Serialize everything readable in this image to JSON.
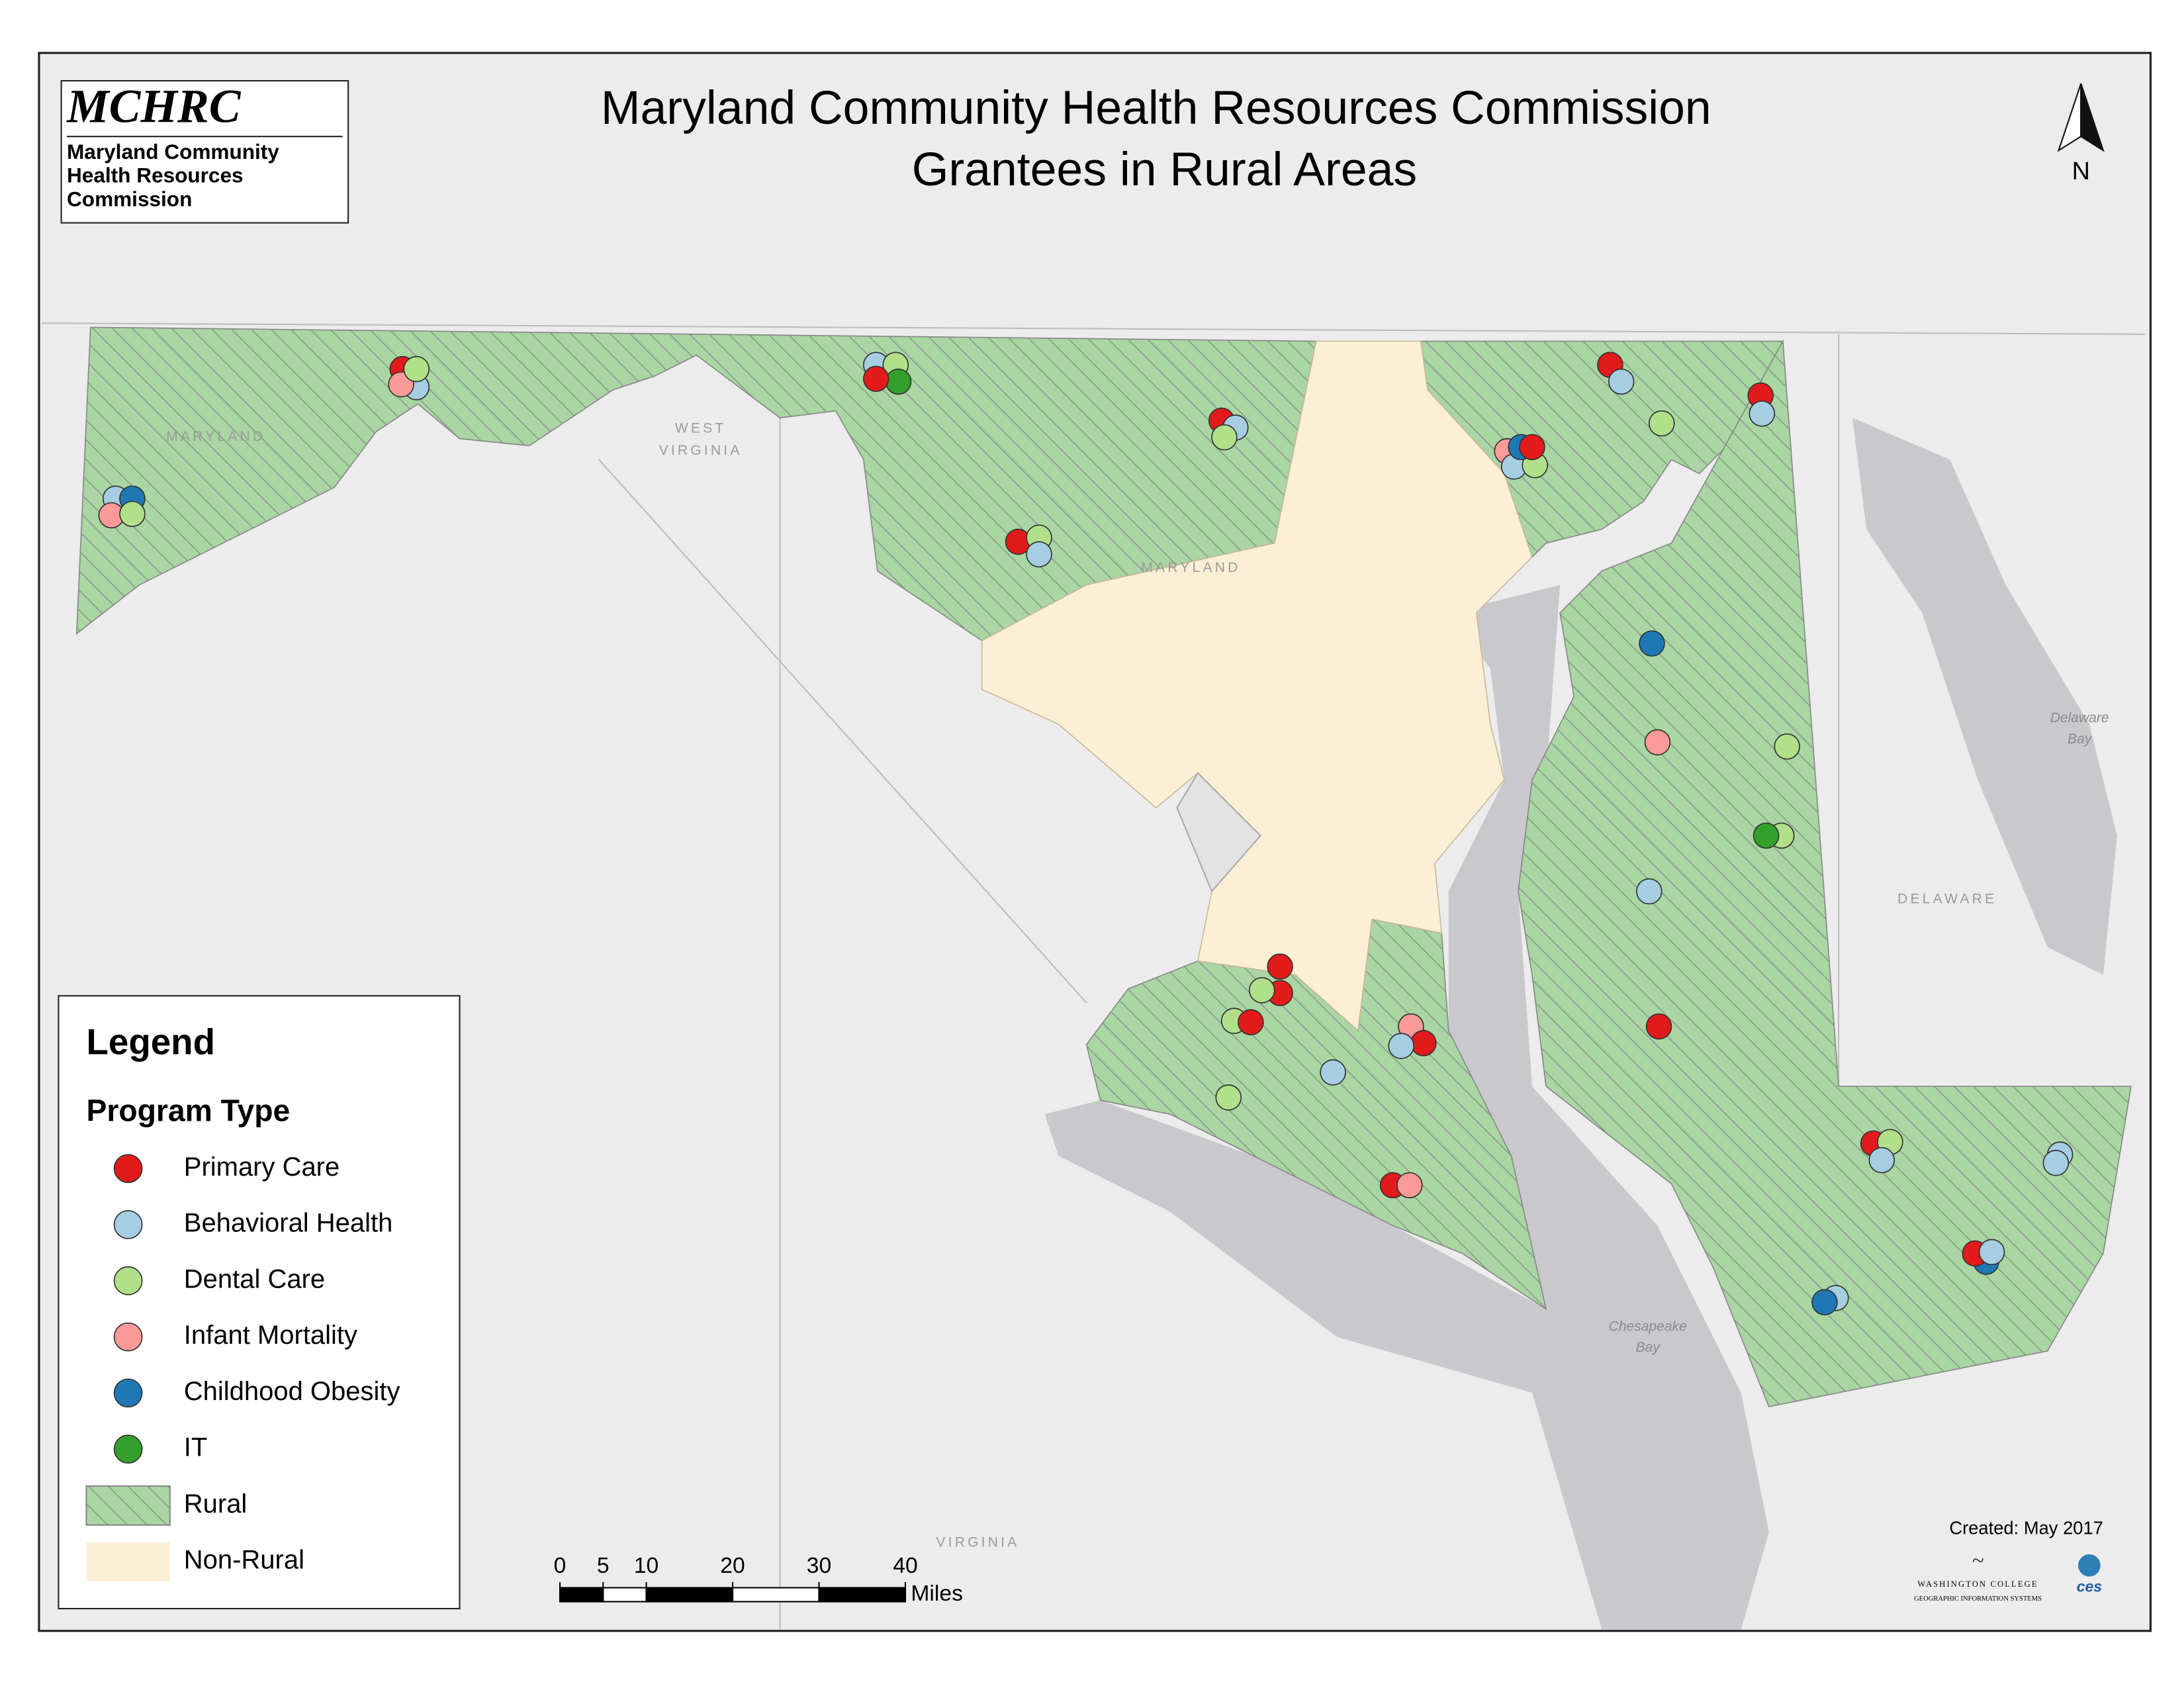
{
  "header": {
    "logo_title": "MCHRC",
    "logo_lines": [
      "Maryland Community",
      "Health Resources",
      "Commission"
    ],
    "title_lines": [
      "Maryland Community Health Resources Commission",
      "Grantees in Rural Areas"
    ]
  },
  "north_arrow": "N",
  "legend": {
    "title": "Legend",
    "subtitle": "Program Type",
    "program_types": [
      {
        "name": "Primary Care",
        "color": "#e31a1c"
      },
      {
        "name": "Behavioral Health",
        "color": "#a6cee3"
      },
      {
        "name": "Dental Care",
        "color": "#b2df8a"
      },
      {
        "name": "Infant Mortality",
        "color": "#fb9a99"
      },
      {
        "name": "Childhood Obesity",
        "color": "#1f78b4"
      },
      {
        "name": "IT",
        "color": "#33a02c"
      }
    ],
    "areas": [
      {
        "name": "Rural",
        "color": "#a9d6a2"
      },
      {
        "name": "Non-Rural",
        "color": "#fdefd5"
      }
    ]
  },
  "scale_bar": {
    "ticks": [
      0,
      5,
      10,
      20,
      30,
      40
    ],
    "unit": "Miles"
  },
  "map_labels": {
    "west_virginia": [
      "WEST",
      "VIRGINIA"
    ],
    "maryland_west": "MARYLAND",
    "maryland_center": "MARYLAND",
    "delaware": "DELAWARE",
    "virginia": "VIRGINIA",
    "delaware_bay": [
      "Delaware",
      "Bay"
    ],
    "chesapeake_bay": [
      "Chesapeake",
      "Bay"
    ]
  },
  "credits": {
    "created": "Created: May 2017",
    "college": "WASHINGTON COLLEGE",
    "gis": "GEOGRAPHIC INFORMATION SYSTEMS",
    "ces": "ces"
  }
}
